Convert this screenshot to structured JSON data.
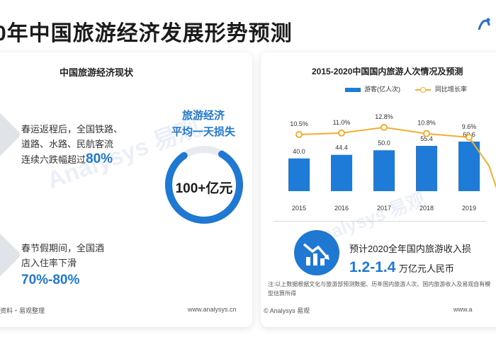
{
  "header": {
    "title": "0年中国旅游经济发展形势预测"
  },
  "left": {
    "title": "中国旅游经济现状",
    "stat1": {
      "text_lines": [
        "春运返程后，全国铁路、",
        "道路、水路、民航客流",
        "连续六跌幅超过"
      ],
      "highlight": "80%"
    },
    "stat2": {
      "text_lines": [
        "春节假期间，全国酒",
        "店入住率下滑"
      ],
      "highlight": "70%-80%"
    },
    "ring": {
      "heading_1": "旅游经济",
      "heading_2": "平均一天损失",
      "center_value": "100+亿元",
      "fill_fraction": 0.82
    },
    "footer": {
      "source": "资料・易观整理",
      "url": "www.analysys.cn"
    }
  },
  "right": {
    "title": "2015-2020中国国内旅游人次情况及预测",
    "forecast": {
      "text": "预计2020全年国内旅游收入损",
      "value": "1.2-1.4",
      "unit": "万亿元人民币"
    },
    "note": "注:以上数据根据文化与旅游部预测数据、历年国内旅游人次、国内旅游收入及易观自有模型估算所得",
    "footer": {
      "source": "© Analysys 易观",
      "url": "www.a"
    }
  },
  "chart_data": {
    "type": "bar",
    "title": "2015-2020中国国内旅游人次情况及预测",
    "categories": [
      "2015",
      "2016",
      "2017",
      "2018",
      "2019"
    ],
    "series": [
      {
        "name": "游客(亿人次)",
        "type": "bar",
        "values": [
          40.0,
          44.4,
          50.0,
          55.4,
          60.6
        ],
        "labels": [
          "40.0",
          "44.4",
          "50.0",
          "55.4",
          "60.6"
        ],
        "color": "#1f7bd8"
      },
      {
        "name": "同比增长率",
        "type": "line",
        "values": [
          10.5,
          11.0,
          12.8,
          10.8,
          9.6
        ],
        "labels": [
          "10.5%",
          "11.0%",
          "12.8%",
          "10.8%",
          "9.6%"
        ],
        "color": "#f2ae2f"
      }
    ],
    "truncated_bar": {
      "value_fraction_of_2019": 0.55,
      "color": "#1f7bd8"
    },
    "truncated_line_drop": true,
    "legend_position": "top",
    "grid": false
  },
  "watermark": {
    "text_1": "Analysys 易观",
    "text_2": "Analysys 易观"
  },
  "colors": {
    "accent": "#1f78d1",
    "bar": "#1f7bd8",
    "line": "#f2ae2f"
  }
}
